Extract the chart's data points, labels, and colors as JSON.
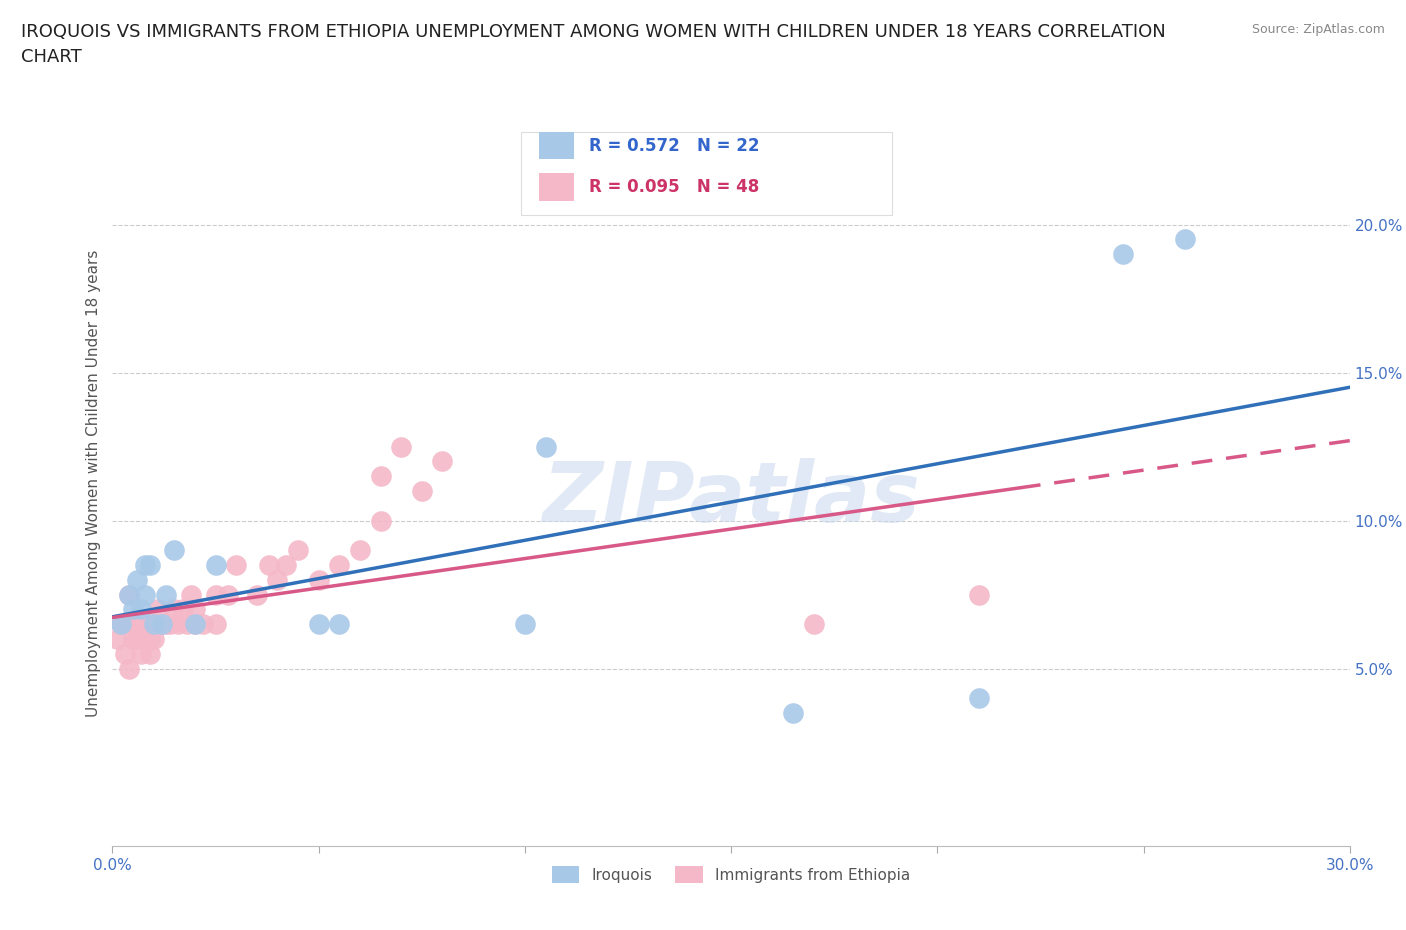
{
  "title": "IROQUOIS VS IMMIGRANTS FROM ETHIOPIA UNEMPLOYMENT AMONG WOMEN WITH CHILDREN UNDER 18 YEARS CORRELATION\nCHART",
  "source": "Source: ZipAtlas.com",
  "ylabel": "Unemployment Among Women with Children Under 18 years",
  "xlim": [
    0.0,
    0.3
  ],
  "ylim": [
    -0.01,
    0.235
  ],
  "xticks": [
    0.0,
    0.05,
    0.1,
    0.15,
    0.2,
    0.25,
    0.3
  ],
  "xtick_labels": [
    "0.0%",
    "",
    "",
    "",
    "",
    "",
    "30.0%"
  ],
  "yticks": [
    0.05,
    0.1,
    0.15,
    0.2
  ],
  "ytick_labels": [
    "5.0%",
    "10.0%",
    "15.0%",
    "20.0%"
  ],
  "blue_color": "#a8c8e8",
  "pink_color": "#f4b8c8",
  "blue_line_color": "#3070b8",
  "pink_line_color": "#d85888",
  "watermark_text": "ZIPatlas",
  "legend_label_blue": "Iroquois",
  "legend_label_pink": "Immigrants from Ethiopia",
  "iroquois_x": [
    0.002,
    0.004,
    0.005,
    0.006,
    0.007,
    0.008,
    0.008,
    0.009,
    0.01,
    0.012,
    0.013,
    0.015,
    0.02,
    0.025,
    0.05,
    0.055,
    0.1,
    0.105,
    0.165,
    0.21,
    0.245,
    0.26
  ],
  "iroquois_y": [
    0.065,
    0.075,
    0.07,
    0.08,
    0.07,
    0.075,
    0.085,
    0.085,
    0.065,
    0.065,
    0.075,
    0.09,
    0.065,
    0.085,
    0.065,
    0.065,
    0.065,
    0.125,
    0.035,
    0.04,
    0.19,
    0.195
  ],
  "ethiopia_x": [
    0.001,
    0.002,
    0.003,
    0.004,
    0.004,
    0.005,
    0.005,
    0.006,
    0.006,
    0.007,
    0.007,
    0.008,
    0.008,
    0.009,
    0.009,
    0.01,
    0.01,
    0.011,
    0.012,
    0.013,
    0.014,
    0.015,
    0.016,
    0.017,
    0.018,
    0.019,
    0.02,
    0.02,
    0.022,
    0.025,
    0.025,
    0.028,
    0.03,
    0.035,
    0.038,
    0.04,
    0.042,
    0.045,
    0.05,
    0.055,
    0.06,
    0.065,
    0.065,
    0.07,
    0.075,
    0.08,
    0.17,
    0.21
  ],
  "ethiopia_y": [
    0.06,
    0.065,
    0.055,
    0.075,
    0.05,
    0.065,
    0.06,
    0.065,
    0.06,
    0.065,
    0.055,
    0.065,
    0.06,
    0.055,
    0.06,
    0.065,
    0.06,
    0.07,
    0.065,
    0.065,
    0.065,
    0.07,
    0.065,
    0.07,
    0.065,
    0.075,
    0.065,
    0.07,
    0.065,
    0.065,
    0.075,
    0.075,
    0.085,
    0.075,
    0.085,
    0.08,
    0.085,
    0.09,
    0.08,
    0.085,
    0.09,
    0.115,
    0.1,
    0.125,
    0.11,
    0.12,
    0.065,
    0.075
  ],
  "background_color": "#ffffff",
  "title_fontsize": 13,
  "axis_label_fontsize": 11,
  "tick_fontsize": 11,
  "tick_color": "#4472c4",
  "grid_color": "#cccccc",
  "blue_r": "R = 0.572",
  "blue_n": "N = 22",
  "pink_r": "R = 0.095",
  "pink_n": "N = 48"
}
